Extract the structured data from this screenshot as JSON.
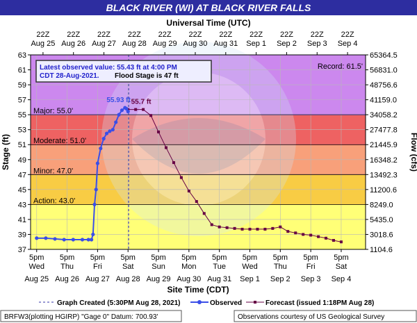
{
  "colors": {
    "banner": "#2d2da0",
    "record_band": "#cc88ee",
    "major_band": "#ee6262",
    "moderate_band": "#f8a07a",
    "minor_band": "#f8cc44",
    "action_band": "#ffff77",
    "observed": "#3a4ee8",
    "forecast": "#660044",
    "frame_bg": "#e0e0e0"
  },
  "chart_data": {
    "type": "line",
    "title": "BLACK RIVER (WI) AT BLACK RIVER FALLS",
    "top_axis_title": "Universal Time (UTC)",
    "top_ticks": [
      {
        "line1": "22Z",
        "line2": "Aug 25"
      },
      {
        "line1": "22Z",
        "line2": "Aug 26"
      },
      {
        "line1": "22Z",
        "line2": "Aug 27"
      },
      {
        "line1": "22Z",
        "line2": "Aug 28"
      },
      {
        "line1": "22Z",
        "line2": "Aug 29"
      },
      {
        "line1": "22Z",
        "line2": "Aug 30"
      },
      {
        "line1": "22Z",
        "line2": "Aug 31"
      },
      {
        "line1": "22Z",
        "line2": "Sep 1"
      },
      {
        "line1": "22Z",
        "line2": "Sep 2"
      },
      {
        "line1": "22Z",
        "line2": "Sep 3"
      },
      {
        "line1": "22Z",
        "line2": "Sep 4"
      }
    ],
    "xlabel": "Site Time (CDT)",
    "bottom_ticks": [
      {
        "line1": "5pm",
        "line2": "Wed",
        "line3": "Aug 25"
      },
      {
        "line1": "5pm",
        "line2": "Thu",
        "line3": "Aug 26"
      },
      {
        "line1": "5pm",
        "line2": "Fri",
        "line3": "Aug 27"
      },
      {
        "line1": "5pm",
        "line2": "Sat",
        "line3": "Aug 28"
      },
      {
        "line1": "5pm",
        "line2": "Sun",
        "line3": "Aug 29"
      },
      {
        "line1": "5pm",
        "line2": "Mon",
        "line3": "Aug 30"
      },
      {
        "line1": "5pm",
        "line2": "Tue",
        "line3": "Aug 31"
      },
      {
        "line1": "5pm",
        "line2": "Wed",
        "line3": "Sep 1"
      },
      {
        "line1": "5pm",
        "line2": "Thu",
        "line3": "Sep 2"
      },
      {
        "line1": "5pm",
        "line2": "Fri",
        "line3": "Sep 3"
      },
      {
        "line1": "5pm",
        "line2": "Sat",
        "line3": "Sep 4"
      }
    ],
    "ylabel": "Stage (ft)",
    "ylabel_right": "Flow (cfs)",
    "ylim": [
      37,
      63
    ],
    "yticks": [
      "37",
      "39",
      "41",
      "43",
      "45",
      "47",
      "49",
      "51",
      "53",
      "55",
      "57",
      "59",
      "61",
      "63"
    ],
    "flow_ticks": [
      "1104.6",
      "3018.6",
      "5435.0",
      "8249.0",
      "11200.6",
      "13492.3",
      "16348.2",
      "21445.9",
      "27477.8",
      "34058.2",
      "41159.0",
      "48756.6",
      "56831.0",
      "65364.5"
    ],
    "flood_categories": [
      {
        "label": "Record: 61.5'",
        "stage": 61.5
      },
      {
        "label": "Major: 55.0'",
        "stage": 55.0
      },
      {
        "label": "Moderate: 51.0'",
        "stage": 51.0
      },
      {
        "label": "Minor: 47.0'",
        "stage": 47.0
      },
      {
        "label": "Action: 43.0'",
        "stage": 43.0
      }
    ],
    "latest_observed": {
      "line1": "Latest observed value: 55.43 ft at 4:00 PM",
      "line2": "CDT 28-Aug-2021.",
      "flood_stage_text": "Flood Stage is 47 ft"
    },
    "annotations": {
      "observed_peak": "55.93 ft",
      "forecast_peak": "55.7 ft"
    },
    "graph_created_day": 3.02,
    "observed_series": {
      "name": "Observed",
      "x_days_since_aug25_5pm": [
        0.0,
        0.3,
        0.6,
        0.9,
        1.2,
        1.5,
        1.7,
        1.8,
        1.85,
        1.9,
        1.95,
        2.0,
        2.1,
        2.2,
        2.3,
        2.4,
        2.5,
        2.6,
        2.7,
        2.8,
        2.9,
        2.95,
        3.0
      ],
      "stage": [
        38.5,
        38.5,
        38.4,
        38.3,
        38.3,
        38.3,
        38.3,
        38.3,
        39.0,
        43.0,
        45.0,
        48.5,
        50.5,
        51.8,
        52.5,
        52.8,
        53.0,
        54.0,
        55.0,
        55.6,
        55.93,
        55.8,
        55.43
      ]
    },
    "forecast_series": {
      "name": "Forecast",
      "x_days_since_aug25_5pm": [
        3.0,
        3.25,
        3.5,
        3.75,
        4.0,
        4.25,
        4.5,
        4.75,
        5.0,
        5.25,
        5.5,
        5.75,
        6.0,
        6.25,
        6.5,
        6.75,
        7.0,
        7.25,
        7.5,
        7.75,
        8.0,
        8.25,
        8.5,
        8.75,
        9.0,
        9.25,
        9.5,
        9.75,
        10.0
      ],
      "stage": [
        55.7,
        55.7,
        55.7,
        54.9,
        52.7,
        50.6,
        48.6,
        46.6,
        44.8,
        43.4,
        41.8,
        40.3,
        40.0,
        39.9,
        39.8,
        39.7,
        39.7,
        39.7,
        39.7,
        39.8,
        40.0,
        39.4,
        39.2,
        39.0,
        38.9,
        38.7,
        38.5,
        38.2,
        38.0
      ]
    },
    "legend": {
      "graph_created": "Graph Created (5:30PM Aug 28, 2021)",
      "observed": "Observed",
      "forecast": "Forecast (issued 1:18PM Aug 28)"
    },
    "footer": {
      "left": "BRFW3(plotting HGIRP) \"Gage 0\" Datum: 700.93'",
      "right": "Observations courtesy of US Geological Survey"
    }
  }
}
